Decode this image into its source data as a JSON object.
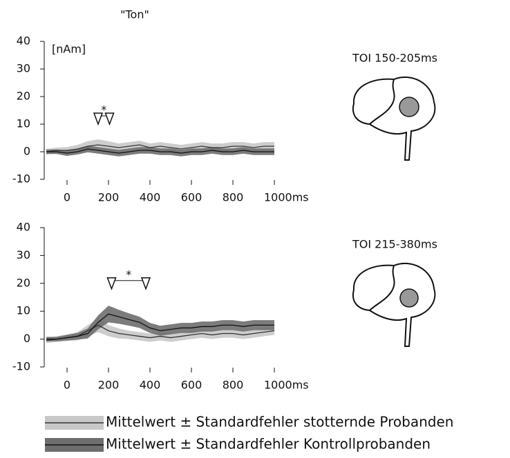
{
  "chart_data": [
    {
      "type": "line",
      "title": "\"Ton\"",
      "y_label": "[nAm]",
      "side_label": "TOI 150-205ms",
      "x": [
        -100,
        -50,
        0,
        50,
        100,
        150,
        200,
        250,
        300,
        350,
        400,
        450,
        500,
        550,
        600,
        650,
        700,
        750,
        800,
        850,
        900,
        950,
        1000
      ],
      "xlim": [
        -100,
        1000
      ],
      "xticks": [
        0,
        200,
        400,
        600,
        800,
        {
          "value": 1000,
          "label": "1000ms"
        }
      ],
      "ylim": [
        -10,
        40
      ],
      "yticks": [
        -10,
        0,
        10,
        20,
        30,
        40
      ],
      "series": [
        {
          "color": "#c8c8c8",
          "line_color": "#333333",
          "values": [
            0,
            0.5,
            0.5,
            1,
            2,
            2.5,
            2,
            1.5,
            2,
            2.5,
            1.5,
            2,
            1.5,
            1,
            1.5,
            2,
            1.5,
            1.5,
            2,
            2,
            1.5,
            2,
            2
          ],
          "error": [
            1,
            1,
            1.2,
            1.5,
            1.8,
            2,
            1.8,
            1.5,
            1.5,
            1.5,
            1.5,
            1.5,
            1.5,
            1.5,
            1.5,
            1.5,
            1.5,
            1.5,
            1.5,
            1.5,
            1.5,
            1.5,
            1.5
          ]
        },
        {
          "color": "#6e6e6e",
          "line_color": "#111111",
          "values": [
            0,
            0,
            -0.5,
            0,
            1,
            0.5,
            0,
            -0.5,
            0,
            0.5,
            0.5,
            0,
            0,
            -0.5,
            0,
            0,
            0.5,
            0,
            0,
            0.5,
            0,
            0,
            0
          ],
          "error": [
            0.8,
            0.8,
            1,
            1,
            1.2,
            1.2,
            1.2,
            1.2,
            1.2,
            1.2,
            1.2,
            1.2,
            1.2,
            1.2,
            1.2,
            1.2,
            1.2,
            1.2,
            1.2,
            1.2,
            1.2,
            1.2,
            1.2
          ]
        }
      ],
      "significance": {
        "x": [
          150,
          205
        ],
        "y": 12,
        "label": "*"
      }
    },
    {
      "type": "line",
      "side_label": "TOI 215-380ms",
      "x": [
        -100,
        -50,
        0,
        50,
        100,
        150,
        200,
        250,
        300,
        350,
        400,
        450,
        500,
        550,
        600,
        650,
        700,
        750,
        800,
        850,
        900,
        950,
        1000
      ],
      "xlim": [
        -100,
        1000
      ],
      "xticks": [
        0,
        200,
        400,
        600,
        800,
        {
          "value": 1000,
          "label": "1000ms"
        }
      ],
      "ylim": [
        -10,
        40
      ],
      "yticks": [
        -10,
        0,
        10,
        20,
        30,
        40
      ],
      "series": [
        {
          "color": "#c8c8c8",
          "line_color": "#333333",
          "values": [
            -0.5,
            0,
            0.5,
            1,
            3,
            5,
            3,
            2,
            1.5,
            1,
            0.5,
            1,
            0.5,
            1,
            1.5,
            2,
            1.5,
            2,
            2,
            1.5,
            2,
            2.5,
            3
          ],
          "error": [
            1,
            1,
            1.2,
            1.5,
            2,
            2.5,
            2,
            1.8,
            1.5,
            1.5,
            1.5,
            1.5,
            1.5,
            1.5,
            1.5,
            1.5,
            1.5,
            1.5,
            1.5,
            1.5,
            1.5,
            1.5,
            1.5
          ]
        },
        {
          "color": "#6e6e6e",
          "line_color": "#111111",
          "values": [
            0,
            0,
            0.5,
            1,
            2,
            6,
            9,
            8,
            7,
            6,
            4,
            3,
            3.5,
            4,
            4,
            4.5,
            4.5,
            5,
            5,
            4.5,
            5,
            5,
            5
          ],
          "error": [
            0.8,
            0.8,
            1,
            1.2,
            1.8,
            2.5,
            3,
            2.5,
            2.2,
            2,
            1.8,
            1.8,
            1.8,
            1.8,
            1.8,
            1.8,
            1.8,
            1.8,
            1.8,
            1.8,
            1.8,
            1.8,
            1.8
          ]
        }
      ],
      "significance": {
        "x": [
          215,
          380
        ],
        "y": 20,
        "label": "*"
      }
    }
  ],
  "legend": [
    {
      "label": "Mittelwert ± Standardfehler stotternde Probanden",
      "band_color": "#c8c8c8",
      "line_color": "#333333"
    },
    {
      "label": "Mittelwert ± Standardfehler Kontrollprobanden",
      "band_color": "#6e6e6e",
      "line_color": "#111111"
    }
  ]
}
